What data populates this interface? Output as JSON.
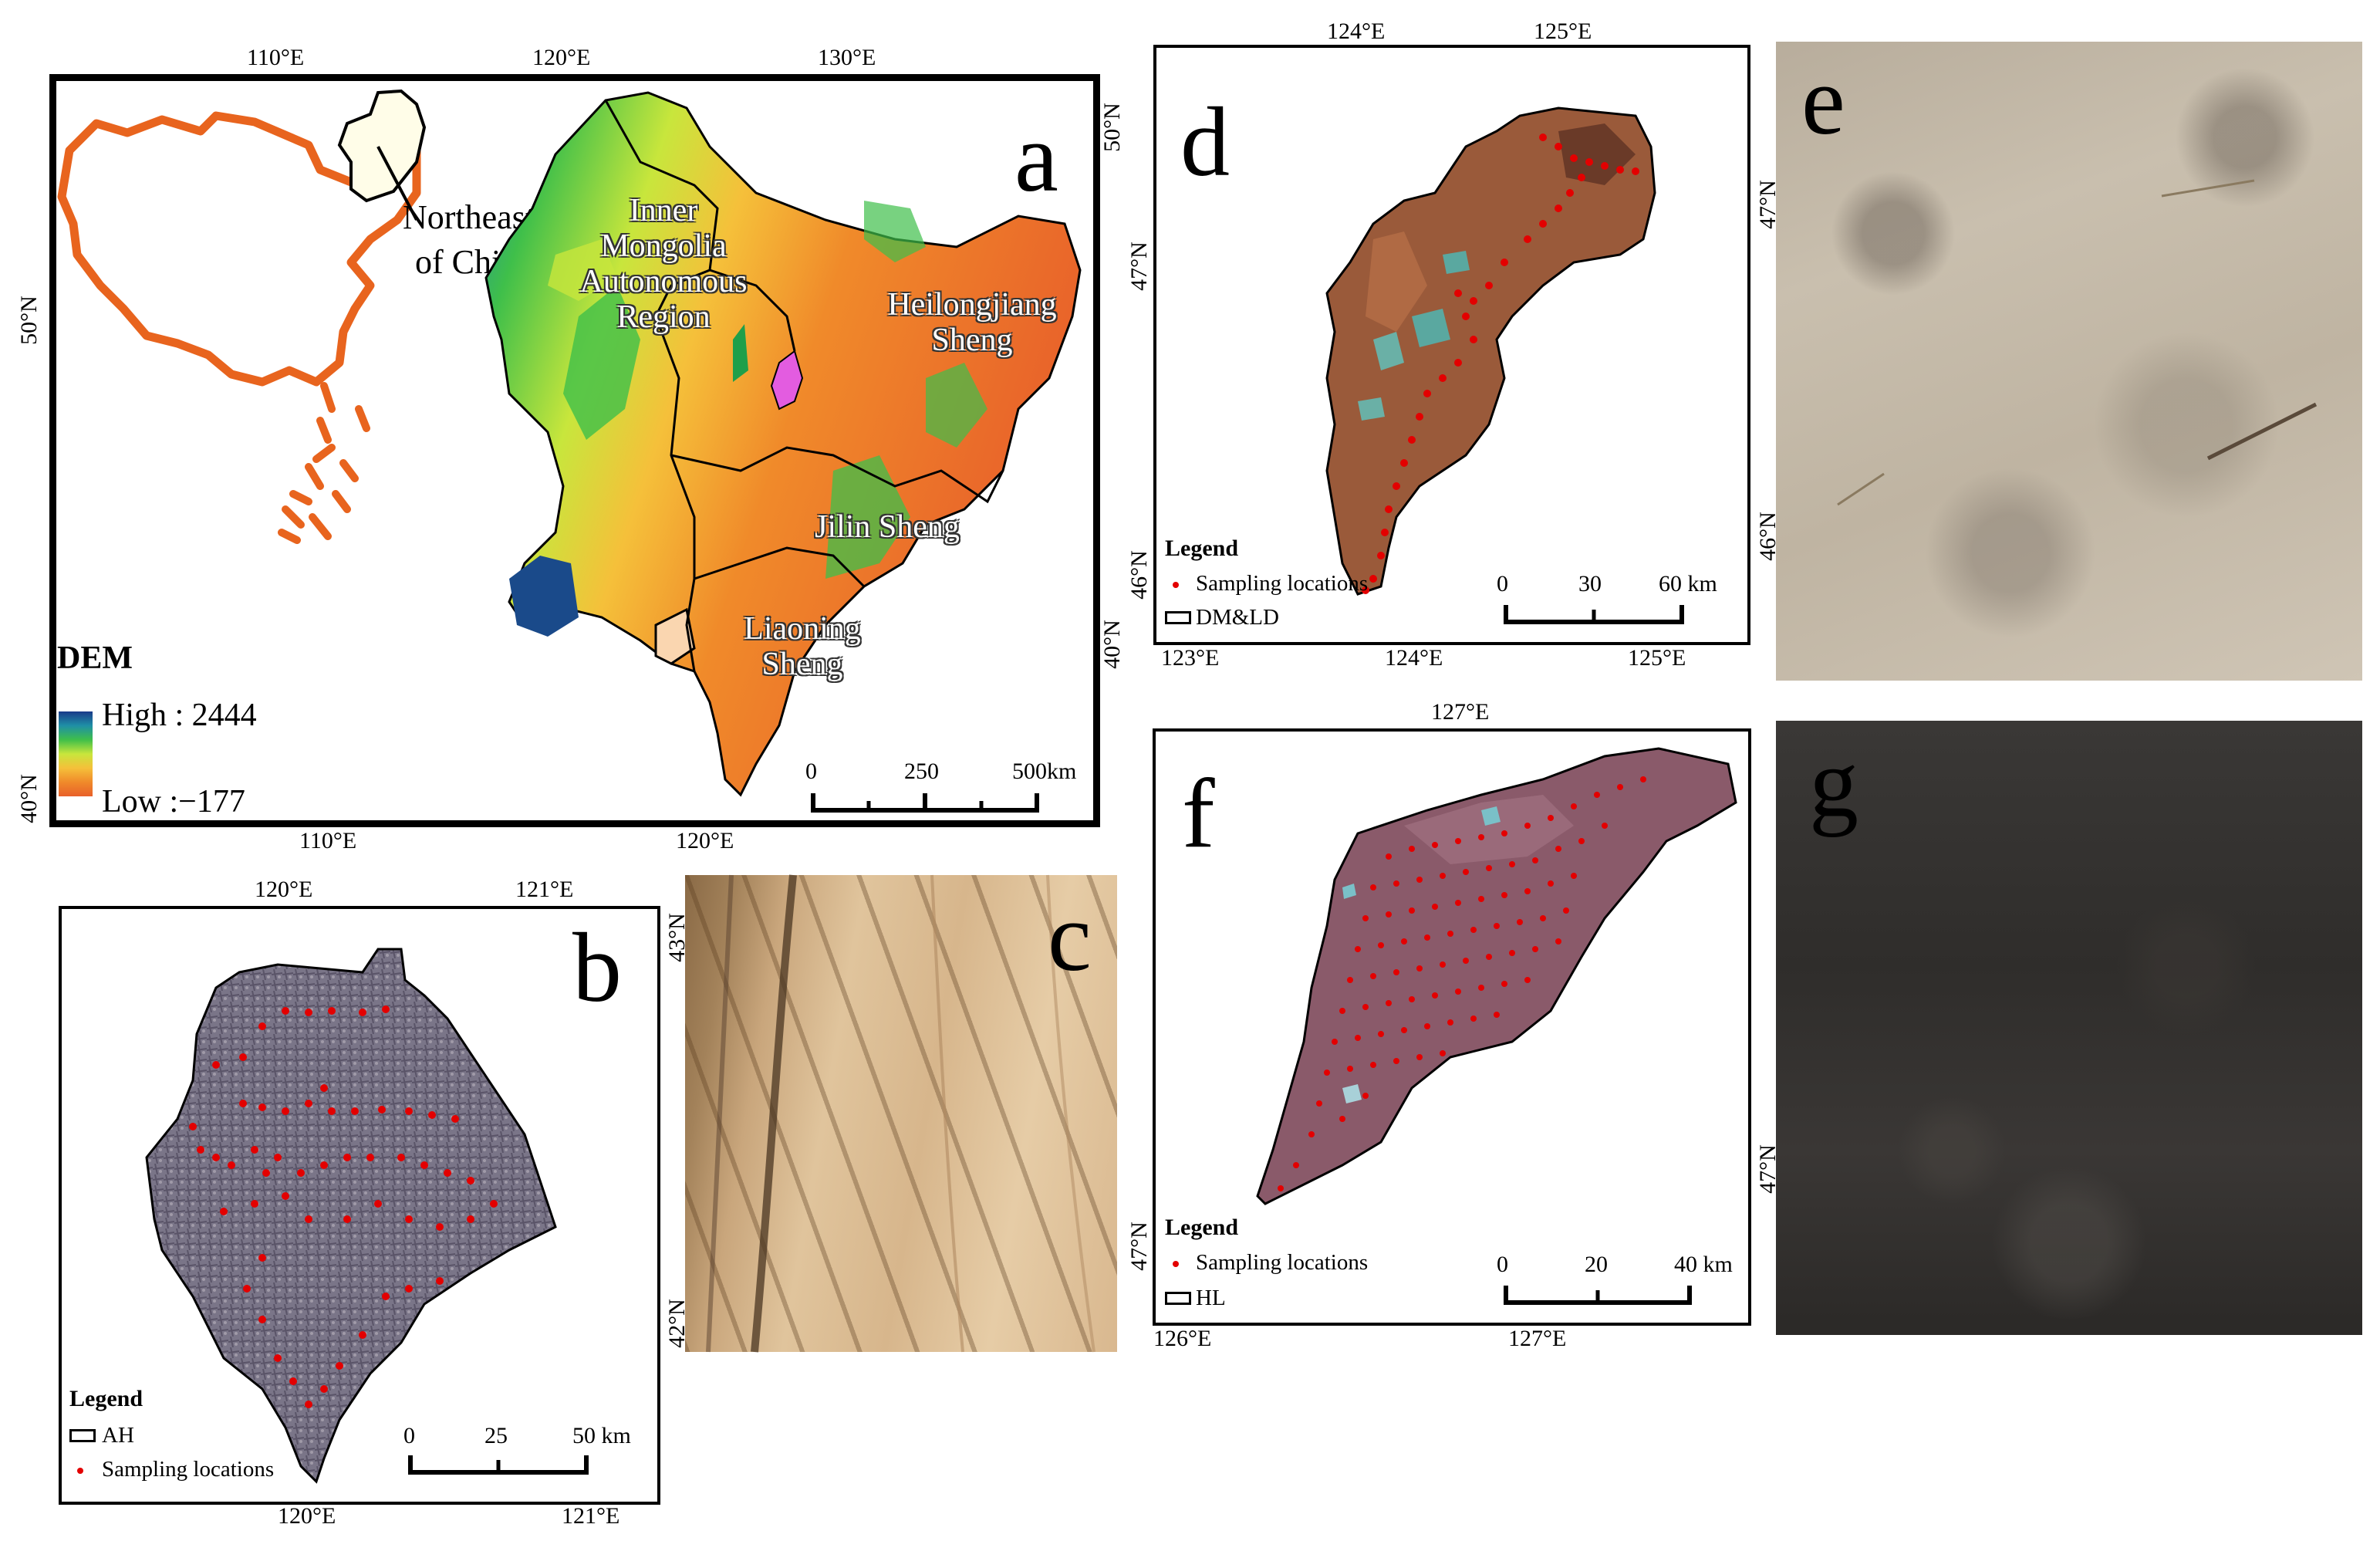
{
  "panels": {
    "a": {
      "letter": "a",
      "lon_ticks_top": [
        "110°E",
        "120°E",
        "130°E"
      ],
      "lon_ticks_bottom": [
        "110°E",
        "120°E"
      ],
      "lat_ticks_left": [
        "50°N",
        "40°N"
      ],
      "lat_ticks_right": [
        "50°N",
        "40°N"
      ],
      "inset_label_line1": "Northeast",
      "inset_label_line2": "of China",
      "regions": {
        "inner_mongolia": [
          "Inner",
          "Mongolia",
          "Autonomous",
          "Region"
        ],
        "heilongjiang": [
          "Heilongjiang",
          "Sheng"
        ],
        "jilin": [
          "Jilin Sheng"
        ],
        "liaoning": [
          "Liaoning",
          "Sheng"
        ]
      },
      "legend": {
        "title": "DEM",
        "high": "High : 2444",
        "low": "Low :−177",
        "colors": [
          "#1a3a8a",
          "#1f8fa6",
          "#3fbf4a",
          "#c8e63c",
          "#f5c03a",
          "#f08a2a",
          "#e8602a"
        ]
      },
      "scale": {
        "labels": [
          "0",
          "250",
          "500km"
        ]
      }
    },
    "b": {
      "letter": "b",
      "lon_ticks_top": [
        "120°E",
        "121°E"
      ],
      "lon_ticks_bottom": [
        "120°E",
        "121°E"
      ],
      "lat_ticks": [
        "43°N",
        "42°N"
      ],
      "legend": {
        "title": "Legend",
        "items": [
          "AH",
          "Sampling locations"
        ]
      },
      "scale": {
        "labels": [
          "0",
          "25",
          "50 km"
        ]
      }
    },
    "c": {
      "letter": "c",
      "lat_ticks": [
        "43°N",
        "42°N"
      ]
    },
    "d": {
      "letter": "d",
      "lon_ticks_top": [
        "124°E",
        "125°E"
      ],
      "lon_ticks_bottom": [
        "123°E",
        "124°E",
        "125°E"
      ],
      "lat_ticks_left": [
        "47°N",
        "46°N"
      ],
      "legend": {
        "title": "Legend",
        "items": [
          "Sampling locations",
          "DM&LD"
        ]
      },
      "scale": {
        "labels": [
          "0",
          "30",
          "60 km"
        ]
      }
    },
    "e": {
      "letter": "e",
      "lat_ticks": [
        "47°N",
        "46°N"
      ]
    },
    "f": {
      "letter": "f",
      "lon_ticks_top": [
        "127°E"
      ],
      "lon_ticks_bottom": [
        "126°E",
        "127°E"
      ],
      "lat_ticks_left": [
        "47°N"
      ],
      "legend": {
        "title": "Legend",
        "items": [
          "Sampling locations",
          "HL"
        ]
      },
      "scale": {
        "labels": [
          "0",
          "20",
          "40 km"
        ]
      }
    },
    "g": {
      "letter": "g",
      "lat_ticks": [
        "47°N"
      ]
    }
  },
  "colors": {
    "china_outline": "#e8641e",
    "sampling_point": "#e30000",
    "roi_magenta": "#e35ce0"
  }
}
